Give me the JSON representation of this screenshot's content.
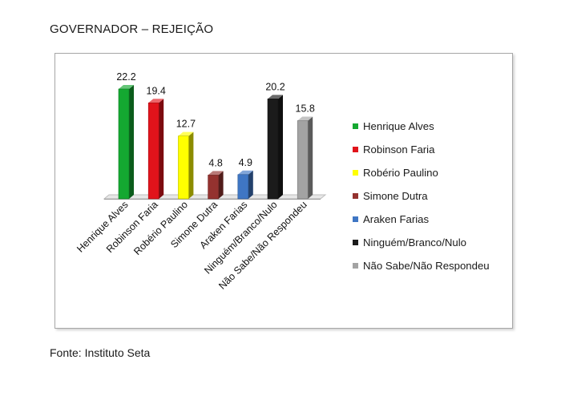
{
  "page": {
    "title": "GOVERNADOR – REJEIÇÃO",
    "source": "Fonte: Instituto Seta"
  },
  "colors": {
    "green": "#14a831",
    "red": "#e1131b",
    "yellow": "#ffff00",
    "darkred": "#94322f",
    "blue": "#3f76c4",
    "black": "#1b1b1b",
    "gray": "#a3a3a3"
  },
  "chart_data": {
    "type": "bar",
    "title": "",
    "xlabel": "",
    "ylabel": "",
    "ylim": [
      0,
      25
    ],
    "grid": false,
    "legend_position": "right",
    "categories": [
      "Henrique Alves",
      "Robinson Faria",
      "Robério Paulino",
      "Simone Dutra",
      "Araken Farias",
      "Ninguém/Branco/Nulo",
      "Não Sabe/Não Respondeu"
    ],
    "values": [
      22.2,
      19.4,
      12.7,
      4.8,
      4.9,
      20.2,
      15.8
    ],
    "data_labels": [
      "22.2",
      "19.4",
      "12.7",
      "4.8",
      "4.9",
      "20.2",
      "15.8"
    ],
    "bar_colors": [
      "#14a831",
      "#e1131b",
      "#ffff00",
      "#94322f",
      "#3f76c4",
      "#1b1b1b",
      "#a3a3a3"
    ]
  },
  "legend": {
    "items": [
      {
        "label": "Henrique Alves",
        "color": "#14a831"
      },
      {
        "label": "Robinson Faria",
        "color": "#e1131b"
      },
      {
        "label": "Robério Paulino",
        "color": "#ffff00"
      },
      {
        "label": "Simone Dutra",
        "color": "#94322f"
      },
      {
        "label": "Araken Farias",
        "color": "#3f76c4"
      },
      {
        "label": "Ninguém/Branco/Nulo",
        "color": "#1b1b1b"
      },
      {
        "label": "Não Sabe/Não Respondeu",
        "color": "#a3a3a3"
      }
    ]
  }
}
